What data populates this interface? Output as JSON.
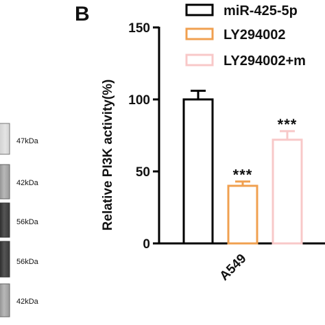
{
  "panel_label": "B",
  "blot_labels": [
    "47kDa",
    "42kDa",
    "56kDa",
    "56kDa",
    "42kDa"
  ],
  "chart_data": {
    "type": "bar",
    "categories": [
      "A549"
    ],
    "ylabel": "Relative PI3K activity(%)",
    "ylim": [
      0,
      150
    ],
    "yticks": [
      0,
      50,
      100,
      150
    ],
    "grid": false,
    "legend_position": "top-right",
    "series": [
      {
        "name": "miR-425-5p",
        "values": [
          100
        ],
        "error": [
          6
        ],
        "significance": "",
        "color": "#000000"
      },
      {
        "name": "LY294002",
        "values": [
          40
        ],
        "error": [
          3
        ],
        "significance": "***",
        "color": "#f0a050"
      },
      {
        "name": "LY294002+m",
        "values": [
          72
        ],
        "error": [
          6
        ],
        "significance": "***",
        "color": "#f8c8c8"
      }
    ]
  }
}
